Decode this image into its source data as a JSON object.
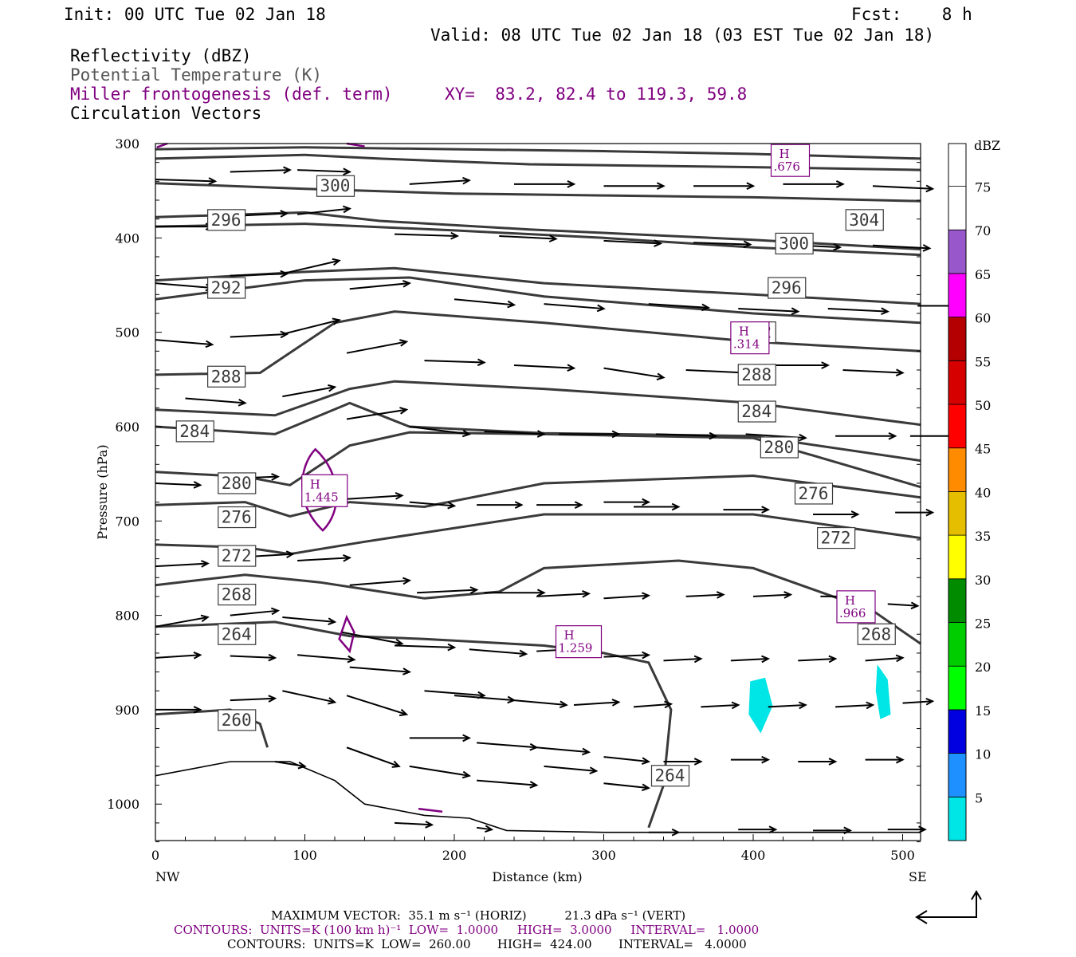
{
  "header": {
    "init": "Init: 00 UTC Tue 02 Jan 18",
    "fcst": "Fcst:    8 h",
    "valid": "Valid: 08 UTC Tue 02 Jan 18 (03 EST Tue 02 Jan 18)"
  },
  "legend_lines": {
    "reflectivity": "Reflectivity (dBZ)",
    "theta": "Potential Temperature (K)",
    "miller": "Miller frontogenesis (def. term)",
    "xy": "XY=  83.2, 82.4 to 119.3, 59.8",
    "vectors": "Circulation Vectors"
  },
  "footer": {
    "max_vector": "MAXIMUM VECTOR:  35.1 m s⁻¹ (HORIZ)          21.3 dPa s⁻¹ (VERT)",
    "contours_purple": "CONTOURS:  UNITS=K (100 km h)⁻¹  LOW=  1.0000     HIGH=  3.0000     INTERVAL=   1.0000",
    "contours_black": "CONTOURS:  UNITS=K  LOW=  260.00       HIGH=  424.00       INTERVAL=   4.0000"
  },
  "chart_data": {
    "type": "cross-section",
    "xlabel": "Distance (km)",
    "ylabel": "Pressure (hPa)",
    "x_left_label": "NW",
    "x_right_label": "SE",
    "xlim": [
      0,
      512
    ],
    "ylim_hpa": [
      300,
      1040
    ],
    "x_ticks": [
      0,
      100,
      200,
      300,
      400,
      500
    ],
    "y_ticks": [
      300,
      400,
      500,
      600,
      700,
      800,
      900,
      1000
    ],
    "colorbar": {
      "unit": "dBZ",
      "levels": [
        5,
        10,
        15,
        20,
        25,
        30,
        35,
        40,
        45,
        50,
        55,
        60,
        65,
        70,
        75
      ],
      "colors": [
        "#00e5e5",
        "#1e90ff",
        "#0000e0",
        "#00ff00",
        "#00cd00",
        "#008b00",
        "#ffff00",
        "#e5be00",
        "#ff8c00",
        "#ff0000",
        "#d70000",
        "#b40000",
        "#ff00ff",
        "#9858cc",
        "#ffffff"
      ]
    },
    "theta_contour_labels": [
      "300",
      "296",
      "292",
      "288",
      "284",
      "280",
      "276",
      "272",
      "268",
      "264",
      "260",
      "304",
      "300",
      "296",
      "292",
      "288",
      "284",
      "280",
      "276",
      "272",
      "268",
      "264"
    ],
    "frontogenesis_maxima": [
      {
        "label": "H",
        "value": ".676"
      },
      {
        "label": "H",
        "value": ".314"
      },
      {
        "label": "H",
        "value": "1.445"
      },
      {
        "label": "H",
        "value": "1.259"
      },
      {
        "label": "H",
        "value": ".966"
      }
    ],
    "reflectivity_cells": [
      {
        "distance_km": 405,
        "pressure_hpa": 900,
        "dbz": "5-10"
      },
      {
        "distance_km": 487,
        "pressure_hpa": 880,
        "dbz": "5-10"
      }
    ],
    "colors": {
      "theta": "#3a3a3a",
      "frontogenesis": "#800080",
      "vectors": "#000000",
      "reflectivity": "#00e5e5"
    }
  }
}
